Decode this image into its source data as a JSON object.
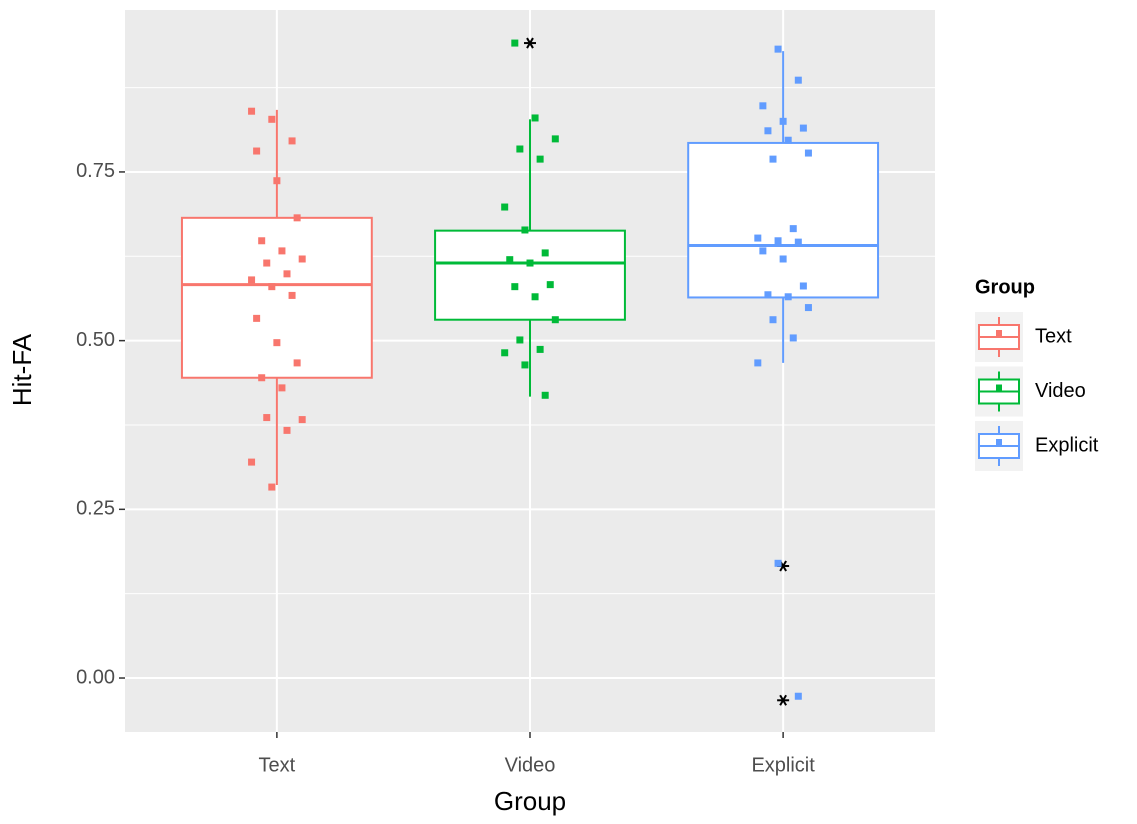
{
  "chart_data": {
    "type": "boxplot",
    "x_label": "Group",
    "y_label": "Hit-FA",
    "legend_title": "Group",
    "legend_position": "right",
    "grid": true,
    "categories": [
      "Text",
      "Video",
      "Explicit"
    ],
    "ylim": [
      -0.08,
      0.99
    ],
    "yticks": [
      {
        "value": 0,
        "label": "0.00"
      },
      0.25,
      {
        "value": 0.5,
        "label": "0.50"
      },
      0.75
    ],
    "series": [
      {
        "name": "Text",
        "color": "#F8766D",
        "box": {
          "lower": 0.286,
          "q1": 0.445,
          "median": 0.583,
          "q3": 0.682,
          "upper": 0.842
        },
        "points": [
          0.84,
          0.828,
          0.796,
          0.781,
          0.737,
          0.682,
          0.648,
          0.633,
          0.621,
          0.615,
          0.599,
          0.59,
          0.58,
          0.567,
          0.533,
          0.497,
          0.467,
          0.445,
          0.43,
          0.383,
          0.386,
          0.367,
          0.32,
          0.283
        ]
      },
      {
        "name": "Video",
        "color": "#00BA38",
        "box": {
          "lower": 0.417,
          "q1": 0.531,
          "median": 0.615,
          "q3": 0.663,
          "upper": 0.828
        },
        "outliers": [
          0.941
        ],
        "points": [
          0.941,
          0.83,
          0.799,
          0.784,
          0.769,
          0.698,
          0.664,
          0.63,
          0.62,
          0.615,
          0.583,
          0.58,
          0.565,
          0.531,
          0.501,
          0.487,
          0.482,
          0.464,
          0.419
        ]
      },
      {
        "name": "Explicit",
        "color": "#619CFF",
        "box": {
          "lower": 0.467,
          "q1": 0.564,
          "median": 0.641,
          "q3": 0.793,
          "upper": 0.929
        },
        "outliers": [
          0.166,
          -0.033
        ],
        "points": [
          0.932,
          0.886,
          0.848,
          0.825,
          0.815,
          0.811,
          0.797,
          0.778,
          0.769,
          0.666,
          0.652,
          0.648,
          0.646,
          0.633,
          0.621,
          0.581,
          0.568,
          0.565,
          0.549,
          0.531,
          0.504,
          0.467,
          0.17,
          -0.027
        ]
      }
    ]
  }
}
